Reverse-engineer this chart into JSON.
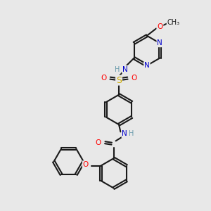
{
  "bg_color": "#e8e8e8",
  "bond_color": "#1a1a1a",
  "atom_colors": {
    "N": "#0000cc",
    "O": "#ff0000",
    "S": "#ccaa00",
    "C": "#1a1a1a",
    "H": "#6699aa"
  },
  "figsize": [
    3.0,
    3.0
  ],
  "dpi": 100
}
